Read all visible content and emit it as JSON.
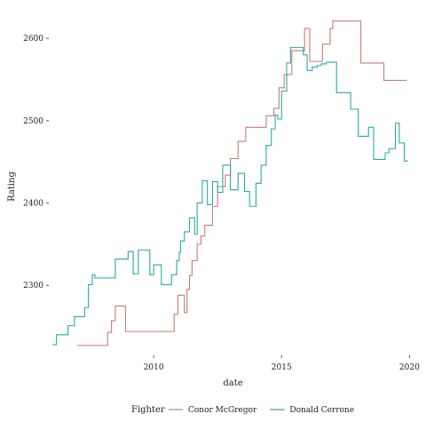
{
  "chart_data": {
    "type": "line",
    "step": true,
    "xlabel": "date",
    "ylabel": "Rating",
    "xlim": [
      2005.9,
      2020.3
    ],
    "ylim": [
      2215,
      2625
    ],
    "x_ticks": [
      2010,
      2015,
      2020
    ],
    "x_tick_labels": [
      "2010",
      "2015",
      "2020"
    ],
    "y_ticks": [
      2300,
      2400,
      2500,
      2600
    ],
    "y_tick_labels": [
      "2300",
      "2400",
      "2500",
      "2600"
    ],
    "grid": false,
    "legend": {
      "position": "bottom",
      "title": "Fighter"
    },
    "series": [
      {
        "name": "Conor McGregor",
        "color": "#c77c77",
        "x": [
          2007.0,
          2008.0,
          2008.2,
          2008.35,
          2008.5,
          2008.9,
          2010.8,
          2010.95,
          2011.2,
          2011.3,
          2011.4,
          2011.5,
          2011.7,
          2011.85,
          2012.0,
          2012.3,
          2012.5,
          2012.8,
          2013.0,
          2013.3,
          2013.6,
          2014.0,
          2014.4,
          2014.7,
          2014.9,
          2015.1,
          2015.4,
          2015.9,
          2016.1,
          2016.4,
          2016.6,
          2016.9,
          2017.0,
          2017.7,
          2018.1,
          2018.6,
          2019.0,
          2019.5,
          2019.9
        ],
        "values": [
          2227,
          2227,
          2243,
          2257,
          2275,
          2244,
          2265,
          2288,
          2267,
          2295,
          2312,
          2330,
          2350,
          2360,
          2373,
          2396,
          2420,
          2434,
          2454,
          2475,
          2492,
          2492,
          2506,
          2515,
          2540,
          2556,
          2585,
          2612,
          2572,
          2572,
          2593,
          2612,
          2621,
          2621,
          2570,
          2570,
          2549,
          2549,
          2549
        ]
      },
      {
        "name": "Donald Cerrone",
        "color": "#2aa8a8",
        "x": [
          2006.05,
          2006.2,
          2006.45,
          2006.65,
          2006.9,
          2007.3,
          2007.45,
          2007.6,
          2007.7,
          2008.3,
          2008.5,
          2009.0,
          2009.2,
          2009.4,
          2009.85,
          2010.0,
          2010.3,
          2010.7,
          2010.9,
          2011.0,
          2011.05,
          2011.2,
          2011.4,
          2011.6,
          2011.7,
          2011.9,
          2012.1,
          2012.3,
          2012.5,
          2012.7,
          2012.9,
          2013.0,
          2013.15,
          2013.3,
          2013.55,
          2013.75,
          2014.0,
          2014.2,
          2014.4,
          2014.6,
          2014.75,
          2014.85,
          2015.0,
          2015.2,
          2015.35,
          2015.5,
          2015.85,
          2016.0,
          2016.2,
          2016.4,
          2016.55,
          2016.75,
          2016.9,
          2017.05,
          2017.15,
          2017.5,
          2017.7,
          2018.0,
          2018.2,
          2018.4,
          2018.6,
          2018.8,
          2019.05,
          2019.2,
          2019.45,
          2019.6,
          2019.8,
          2019.95
        ],
        "values": [
          2228,
          2240,
          2240,
          2251,
          2262,
          2273,
          2301,
          2313,
          2309,
          2309,
          2332,
          2341,
          2314,
          2343,
          2313,
          2325,
          2301,
          2313,
          2330,
          2340,
          2354,
          2365,
          2382,
          2362,
          2400,
          2427,
          2398,
          2426,
          2413,
          2446,
          2446,
          2416,
          2416,
          2436,
          2414,
          2396,
          2424,
          2446,
          2470,
          2490,
          2507,
          2502,
          2536,
          2570,
          2589,
          2589,
          2580,
          2561,
          2565,
          2567,
          2569,
          2571,
          2571,
          2571,
          2534,
          2534,
          2514,
          2481,
          2481,
          2492,
          2453,
          2453,
          2461,
          2466,
          2497,
          2473,
          2451,
          2451
        ]
      }
    ]
  }
}
